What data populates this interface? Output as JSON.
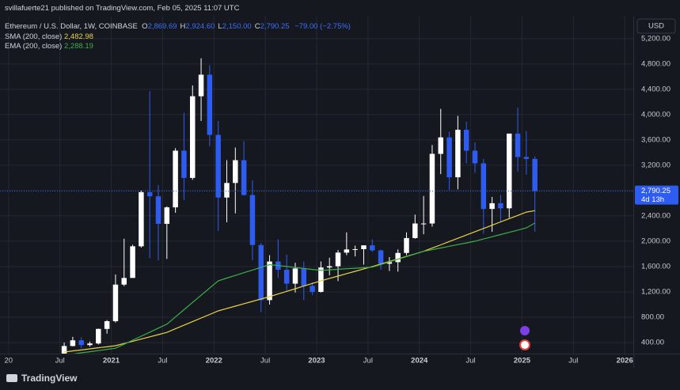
{
  "header": {
    "publisher": "svillafuerte21 published on TradingView.com, Feb 05, 2025 11:07 UTC",
    "symbol": "Ethereum / U.S. Dollar, 1W, COINBASE",
    "ohlc": [
      {
        "key": "O",
        "value": "2,869.69"
      },
      {
        "key": "H",
        "value": "2,924.60"
      },
      {
        "key": "L",
        "value": "2,150.00"
      },
      {
        "key": "C",
        "value": "2,790.25"
      }
    ],
    "change": "−79.00 (−2.75%)",
    "currency": "USD",
    "brand": "TradingView"
  },
  "chart_data": {
    "type": "candlestick",
    "x": [
      "2020-07",
      "2020-08",
      "2020-09",
      "2020-10",
      "2020-11",
      "2020-12",
      "2021-01",
      "2021-02",
      "2021-03",
      "2021-04",
      "2021-05",
      "2021-06",
      "2021-07",
      "2021-08",
      "2021-09",
      "2021-10",
      "2021-11",
      "2021-12",
      "2022-01",
      "2022-02",
      "2022-03",
      "2022-04",
      "2022-05",
      "2022-06",
      "2022-07",
      "2022-08",
      "2022-09",
      "2022-10",
      "2022-11",
      "2022-12",
      "2023-01",
      "2023-02",
      "2023-03",
      "2023-04",
      "2023-05",
      "2023-06",
      "2023-07",
      "2023-08",
      "2023-09",
      "2023-10",
      "2023-11",
      "2023-12",
      "2024-01",
      "2024-02",
      "2024-03",
      "2024-04",
      "2024-05",
      "2024-06",
      "2024-07",
      "2024-08",
      "2024-09",
      "2024-10",
      "2024-11",
      "2024-12",
      "2025-01",
      "2025-02"
    ],
    "open": [
      226,
      345,
      435,
      360,
      385,
      615,
      737,
      1315,
      1420,
      1920,
      2775,
      2710,
      2275,
      2535,
      3430,
      3000,
      4290,
      4630,
      3680,
      2690,
      2920,
      3280,
      2730,
      1940,
      1070,
      1680,
      1550,
      1330,
      1570,
      1295,
      1200,
      1585,
      1605,
      1820,
      1870,
      1875,
      1935,
      1855,
      1645,
      1670,
      1815,
      2050,
      2280,
      2280,
      3380,
      3640,
      3010,
      3760,
      3430,
      3230,
      2510,
      2600,
      2520,
      3700,
      3330,
      3300
    ],
    "high": [
      400,
      490,
      485,
      415,
      620,
      755,
      1475,
      2040,
      1945,
      2800,
      4370,
      2890,
      2550,
      3470,
      4030,
      4460,
      4890,
      4780,
      3900,
      3280,
      3480,
      3580,
      2960,
      1970,
      1780,
      2030,
      1790,
      1660,
      1680,
      1350,
      1680,
      1740,
      1860,
      2140,
      1930,
      1930,
      2030,
      1870,
      1750,
      1870,
      2140,
      2420,
      2715,
      3520,
      4090,
      3730,
      3980,
      3890,
      3560,
      3300,
      2700,
      2730,
      3700,
      4110,
      3740,
      3340
    ],
    "low": [
      220,
      340,
      310,
      335,
      370,
      540,
      715,
      1290,
      1450,
      1900,
      1730,
      1700,
      1720,
      2450,
      2650,
      2970,
      3900,
      3500,
      2160,
      2300,
      2440,
      2720,
      1700,
      880,
      1000,
      1420,
      1220,
      1190,
      1070,
      1150,
      1190,
      1460,
      1370,
      1780,
      1760,
      1630,
      1830,
      1550,
      1530,
      1520,
      1780,
      2040,
      2110,
      2230,
      3060,
      2810,
      2820,
      3230,
      3080,
      2120,
      2150,
      2300,
      2370,
      3100,
      3050,
      2150
    ],
    "close": [
      345,
      435,
      360,
      385,
      615,
      737,
      1315,
      1420,
      1920,
      2775,
      2710,
      2275,
      2535,
      3430,
      3000,
      4290,
      4630,
      3680,
      2690,
      2920,
      3280,
      2730,
      1940,
      1070,
      1680,
      1550,
      1330,
      1570,
      1295,
      1200,
      1585,
      1605,
      1820,
      1870,
      1875,
      1935,
      1855,
      1645,
      1670,
      1815,
      2050,
      2280,
      2280,
      3380,
      3640,
      3010,
      3760,
      3430,
      3230,
      2510,
      2600,
      2520,
      3700,
      3330,
      3300,
      2790.25
    ],
    "up_color": "#ffffff",
    "down_color": "#2f5cf0",
    "series": [
      {
        "name": "SMA (200, close)",
        "color": "#e8d34a",
        "label_value": "2,482.98",
        "values": [
          250,
          267,
          283,
          300,
          317,
          333,
          350,
          385,
          420,
          455,
          490,
          525,
          560,
          617,
          673,
          730,
          787,
          843,
          900,
          938,
          975,
          1013,
          1050,
          1088,
          1125,
          1167,
          1208,
          1250,
          1292,
          1333,
          1375,
          1413,
          1450,
          1488,
          1525,
          1563,
          1600,
          1640,
          1680,
          1720,
          1760,
          1800,
          1840,
          1892,
          1943,
          1995,
          2047,
          2098,
          2150,
          2202,
          2253,
          2305,
          2357,
          2408,
          2460,
          2482.98
        ]
      },
      {
        "name": "EMA (200, close)",
        "color": "#3fae4a",
        "label_value": "2,288.19",
        "values": [
          200,
          218,
          237,
          255,
          273,
          292,
          310,
          373,
          437,
          500,
          563,
          627,
          690,
          804,
          918,
          1033,
          1147,
          1261,
          1375,
          1418,
          1460,
          1503,
          1545,
          1588,
          1630,
          1615,
          1600,
          1585,
          1570,
          1555,
          1540,
          1548,
          1557,
          1565,
          1573,
          1582,
          1590,
          1632,
          1673,
          1715,
          1757,
          1798,
          1840,
          1867,
          1893,
          1920,
          1947,
          1973,
          2000,
          2035,
          2070,
          2105,
          2140,
          2175,
          2210,
          2288.19
        ]
      }
    ],
    "last_price_label": "2,790.25",
    "countdown": "4d 13h",
    "last_price_color": "#2f5cf0",
    "xlim": [
      "2019-12",
      "2026-02"
    ],
    "xticks": [
      {
        "value": "2020-01",
        "label": "20"
      },
      {
        "value": "2020-07",
        "label": "Jul"
      },
      {
        "value": "2021-01",
        "label": "2021"
      },
      {
        "value": "2021-07",
        "label": "Jul"
      },
      {
        "value": "2022-01",
        "label": "2022"
      },
      {
        "value": "2022-07",
        "label": "Jul"
      },
      {
        "value": "2023-01",
        "label": "2023"
      },
      {
        "value": "2023-07",
        "label": "Jul"
      },
      {
        "value": "2024-01",
        "label": "2024"
      },
      {
        "value": "2024-07",
        "label": "Jul"
      },
      {
        "value": "2025-01",
        "label": "2025"
      },
      {
        "value": "2025-07",
        "label": "Jul"
      },
      {
        "value": "2026-01",
        "label": "2026"
      }
    ],
    "ylim": [
      225,
      5560
    ],
    "yticks": [
      {
        "value": 400,
        "label": "400.00"
      },
      {
        "value": 800,
        "label": "800.00"
      },
      {
        "value": 1200,
        "label": "1,200.00"
      },
      {
        "value": 1600,
        "label": "1,600.00"
      },
      {
        "value": 2000,
        "label": "2,000.00"
      },
      {
        "value": 2400,
        "label": "2,400.00"
      },
      {
        "value": 2800,
        "label": "2,800.00"
      },
      {
        "value": 3200,
        "label": "3,200.00"
      },
      {
        "value": 3600,
        "label": "3,600.00"
      },
      {
        "value": 4000,
        "label": "4,000.00"
      },
      {
        "value": 4400,
        "label": "4,400.00"
      },
      {
        "value": 4800,
        "label": "4,800.00"
      },
      {
        "value": 5200,
        "label": "5,200.00"
      }
    ],
    "grid": true
  }
}
